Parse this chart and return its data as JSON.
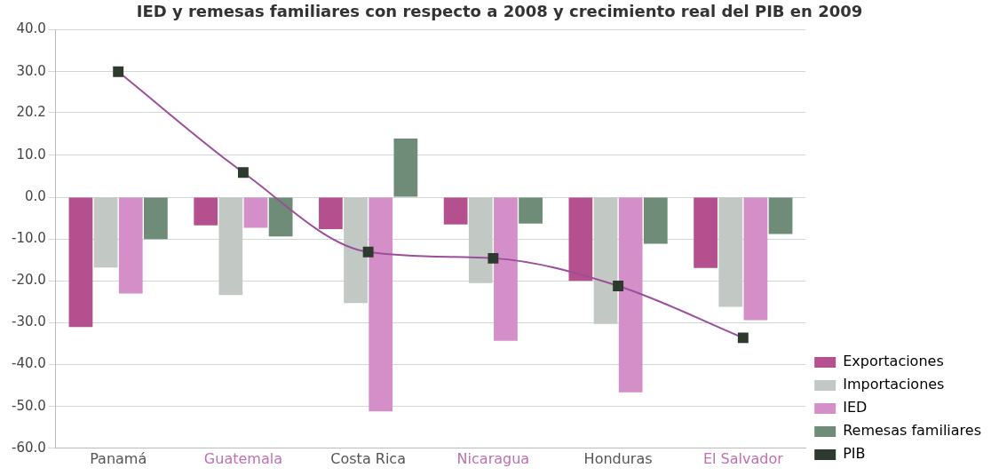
{
  "chart_data": {
    "type": "bar",
    "title": "IED y remesas familiares con respecto a 2008 y crecimiento real del PIB en 2009",
    "categories": [
      "Panamá",
      "Guatemala",
      "Costa Rica",
      "Nicaragua",
      "Honduras",
      "El Salvador"
    ],
    "series": [
      {
        "name": "Exportaciones",
        "color": "#b5508f",
        "values": [
          -31,
          -6.7,
          -7.6,
          -6.5,
          -20,
          -16.9
        ]
      },
      {
        "name": "Importaciones",
        "color": "#c2c8c4",
        "values": [
          -16.8,
          -23.4,
          -25.3,
          -20.5,
          -30.3,
          -26.2
        ]
      },
      {
        "name": "IED",
        "color": "#d48ec8",
        "values": [
          -23,
          -7.3,
          -51.2,
          -34.3,
          -46.6,
          -29.4
        ]
      },
      {
        "name": "Remesas familiares",
        "color": "#6e8c78",
        "values": [
          -10,
          -9.4,
          14,
          -6.3,
          -11.1,
          -8.8
        ]
      },
      {
        "name": "PIB",
        "type": "line",
        "color": "#9b4f9b",
        "values": [
          30,
          5.9,
          -13.1,
          -14.6,
          -21.2,
          -33.6
        ]
      }
    ],
    "ylim": [
      -60,
      40
    ],
    "yticks": [
      {
        "value": -60,
        "label": "-60.0"
      },
      {
        "value": -50,
        "label": "-50.0"
      },
      {
        "value": -40,
        "label": "-40.0"
      },
      {
        "value": -30,
        "label": "-30.0"
      },
      {
        "value": -20,
        "label": "-20.0"
      },
      {
        "value": -10,
        "label": "-10.0"
      },
      {
        "value": 0,
        "label": "0.0"
      },
      {
        "value": 10,
        "label": "10.0"
      },
      {
        "value": 20.2,
        "label": "20.2"
      },
      {
        "value": 30,
        "label": "30.0"
      },
      {
        "value": 40,
        "label": "40.0"
      }
    ],
    "grid": "y",
    "legend": "bottom right",
    "marker": "square"
  }
}
